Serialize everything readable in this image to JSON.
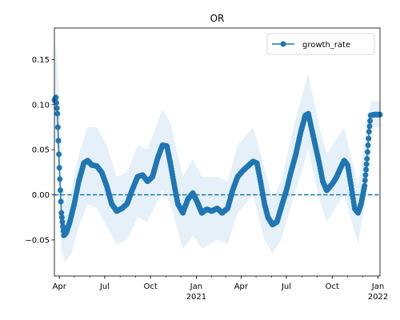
{
  "chart_data": {
    "type": "line",
    "title": "OR",
    "xlabel": "",
    "ylabel": "",
    "xlim": [
      "2020-03-22",
      "2022-01-05"
    ],
    "ylim": [
      -0.09,
      0.185
    ],
    "y_ticks": [
      -0.05,
      0.0,
      0.05,
      0.1,
      0.15
    ],
    "y_tick_labels": [
      "−0.05",
      "0.00",
      "0.05",
      "0.10",
      "0.15"
    ],
    "x_ticks": [
      {
        "date": "2020-04-01",
        "label": "Apr",
        "sublabel": ""
      },
      {
        "date": "2020-07-01",
        "label": "Jul",
        "sublabel": ""
      },
      {
        "date": "2020-10-01",
        "label": "Oct",
        "sublabel": ""
      },
      {
        "date": "2021-01-01",
        "label": "Jan",
        "sublabel": "2021"
      },
      {
        "date": "2021-04-01",
        "label": "Apr",
        "sublabel": ""
      },
      {
        "date": "2021-07-01",
        "label": "Jul",
        "sublabel": ""
      },
      {
        "date": "2021-10-01",
        "label": "Oct",
        "sublabel": ""
      },
      {
        "date": "2022-01-01",
        "label": "Jan",
        "sublabel": "2022"
      }
    ],
    "reference_line": {
      "y": 0.0,
      "style": "dashed"
    },
    "legend": {
      "position": "top-right",
      "entries": [
        "growth_rate"
      ]
    },
    "colors": {
      "series": "#1f77b4",
      "band": "#d6e6f4"
    },
    "series": [
      {
        "name": "growth_rate",
        "points": [
          [
            "2020-03-22",
            0.105
          ],
          [
            "2020-03-25",
            0.108
          ],
          [
            "2020-03-28",
            0.09
          ],
          [
            "2020-04-01",
            0.03
          ],
          [
            "2020-04-05",
            -0.02
          ],
          [
            "2020-04-10",
            -0.045
          ],
          [
            "2020-04-15",
            -0.042
          ],
          [
            "2020-04-22",
            -0.03
          ],
          [
            "2020-05-01",
            -0.01
          ],
          [
            "2020-05-10",
            0.015
          ],
          [
            "2020-05-20",
            0.035
          ],
          [
            "2020-05-28",
            0.038
          ],
          [
            "2020-06-05",
            0.033
          ],
          [
            "2020-06-15",
            0.032
          ],
          [
            "2020-06-25",
            0.025
          ],
          [
            "2020-07-05",
            0.01
          ],
          [
            "2020-07-15",
            -0.01
          ],
          [
            "2020-07-25",
            -0.018
          ],
          [
            "2020-08-05",
            -0.015
          ],
          [
            "2020-08-15",
            -0.01
          ],
          [
            "2020-08-25",
            0.005
          ],
          [
            "2020-09-05",
            0.02
          ],
          [
            "2020-09-15",
            0.022
          ],
          [
            "2020-09-25",
            0.015
          ],
          [
            "2020-10-05",
            0.02
          ],
          [
            "2020-10-15",
            0.04
          ],
          [
            "2020-10-25",
            0.055
          ],
          [
            "2020-11-03",
            0.054
          ],
          [
            "2020-11-10",
            0.035
          ],
          [
            "2020-11-18",
            0.01
          ],
          [
            "2020-11-25",
            -0.01
          ],
          [
            "2020-12-05",
            -0.02
          ],
          [
            "2020-12-15",
            -0.005
          ],
          [
            "2020-12-25",
            0.002
          ],
          [
            "2021-01-03",
            -0.008
          ],
          [
            "2021-01-12",
            -0.02
          ],
          [
            "2021-01-22",
            -0.016
          ],
          [
            "2021-02-01",
            -0.018
          ],
          [
            "2021-02-12",
            -0.015
          ],
          [
            "2021-02-22",
            -0.02
          ],
          [
            "2021-03-05",
            -0.015
          ],
          [
            "2021-03-15",
            0.005
          ],
          [
            "2021-03-25",
            0.02
          ],
          [
            "2021-04-05",
            0.027
          ],
          [
            "2021-04-15",
            0.032
          ],
          [
            "2021-04-25",
            0.037
          ],
          [
            "2021-05-03",
            0.035
          ],
          [
            "2021-05-10",
            0.015
          ],
          [
            "2021-05-18",
            -0.01
          ],
          [
            "2021-05-25",
            -0.025
          ],
          [
            "2021-06-03",
            -0.033
          ],
          [
            "2021-06-12",
            -0.03
          ],
          [
            "2021-06-20",
            -0.015
          ],
          [
            "2021-07-01",
            0.005
          ],
          [
            "2021-07-10",
            0.025
          ],
          [
            "2021-07-20",
            0.045
          ],
          [
            "2021-07-30",
            0.07
          ],
          [
            "2021-08-08",
            0.088
          ],
          [
            "2021-08-14",
            0.09
          ],
          [
            "2021-08-20",
            0.075
          ],
          [
            "2021-08-28",
            0.055
          ],
          [
            "2021-09-05",
            0.035
          ],
          [
            "2021-09-12",
            0.015
          ],
          [
            "2021-09-20",
            0.005
          ],
          [
            "2021-10-01",
            0.012
          ],
          [
            "2021-10-10",
            0.02
          ],
          [
            "2021-10-18",
            0.03
          ],
          [
            "2021-10-25",
            0.038
          ],
          [
            "2021-11-01",
            0.033
          ],
          [
            "2021-11-08",
            0.01
          ],
          [
            "2021-11-15",
            -0.015
          ],
          [
            "2021-11-22",
            -0.02
          ],
          [
            "2021-11-28",
            -0.01
          ],
          [
            "2021-12-05",
            0.01
          ],
          [
            "2021-12-10",
            0.04
          ],
          [
            "2021-12-14",
            0.07
          ],
          [
            "2021-12-17",
            0.088
          ],
          [
            "2021-12-25",
            0.089
          ],
          [
            "2022-01-05",
            0.089
          ]
        ]
      }
    ],
    "band": {
      "name": "confidence_interval",
      "points": [
        [
          "2020-03-22",
          0.065,
          0.17
        ],
        [
          "2020-03-28",
          0.05,
          0.15
        ],
        [
          "2020-04-05",
          -0.06,
          0.02
        ],
        [
          "2020-04-12",
          -0.075,
          -0.01
        ],
        [
          "2020-04-25",
          -0.065,
          0.005
        ],
        [
          "2020-05-10",
          -0.035,
          0.045
        ],
        [
          "2020-05-28",
          -0.01,
          0.075
        ],
        [
          "2020-06-15",
          -0.015,
          0.075
        ],
        [
          "2020-07-05",
          -0.035,
          0.055
        ],
        [
          "2020-07-25",
          -0.055,
          0.02
        ],
        [
          "2020-08-15",
          -0.05,
          0.025
        ],
        [
          "2020-09-05",
          -0.025,
          0.055
        ],
        [
          "2020-09-25",
          -0.03,
          0.05
        ],
        [
          "2020-10-25",
          0.005,
          0.095
        ],
        [
          "2020-11-10",
          -0.01,
          0.08
        ],
        [
          "2020-12-05",
          -0.06,
          0.02
        ],
        [
          "2020-12-25",
          -0.045,
          0.04
        ],
        [
          "2021-01-12",
          -0.06,
          0.02
        ],
        [
          "2021-02-12",
          -0.05,
          0.02
        ],
        [
          "2021-03-05",
          -0.055,
          0.015
        ],
        [
          "2021-03-25",
          -0.02,
          0.055
        ],
        [
          "2021-04-25",
          0.0,
          0.075
        ],
        [
          "2021-05-18",
          -0.05,
          0.03
        ],
        [
          "2021-06-03",
          -0.065,
          -0.005
        ],
        [
          "2021-06-20",
          -0.05,
          0.015
        ],
        [
          "2021-07-20",
          0.005,
          0.085
        ],
        [
          "2021-08-14",
          0.05,
          0.135
        ],
        [
          "2021-09-05",
          -0.005,
          0.075
        ],
        [
          "2021-09-20",
          -0.03,
          0.045
        ],
        [
          "2021-10-25",
          0.0,
          0.075
        ],
        [
          "2021-11-22",
          -0.055,
          0.01
        ],
        [
          "2021-12-10",
          0.005,
          0.075
        ],
        [
          "2021-12-17",
          0.075,
          0.104
        ],
        [
          "2022-01-05",
          0.075,
          0.104
        ]
      ]
    }
  }
}
